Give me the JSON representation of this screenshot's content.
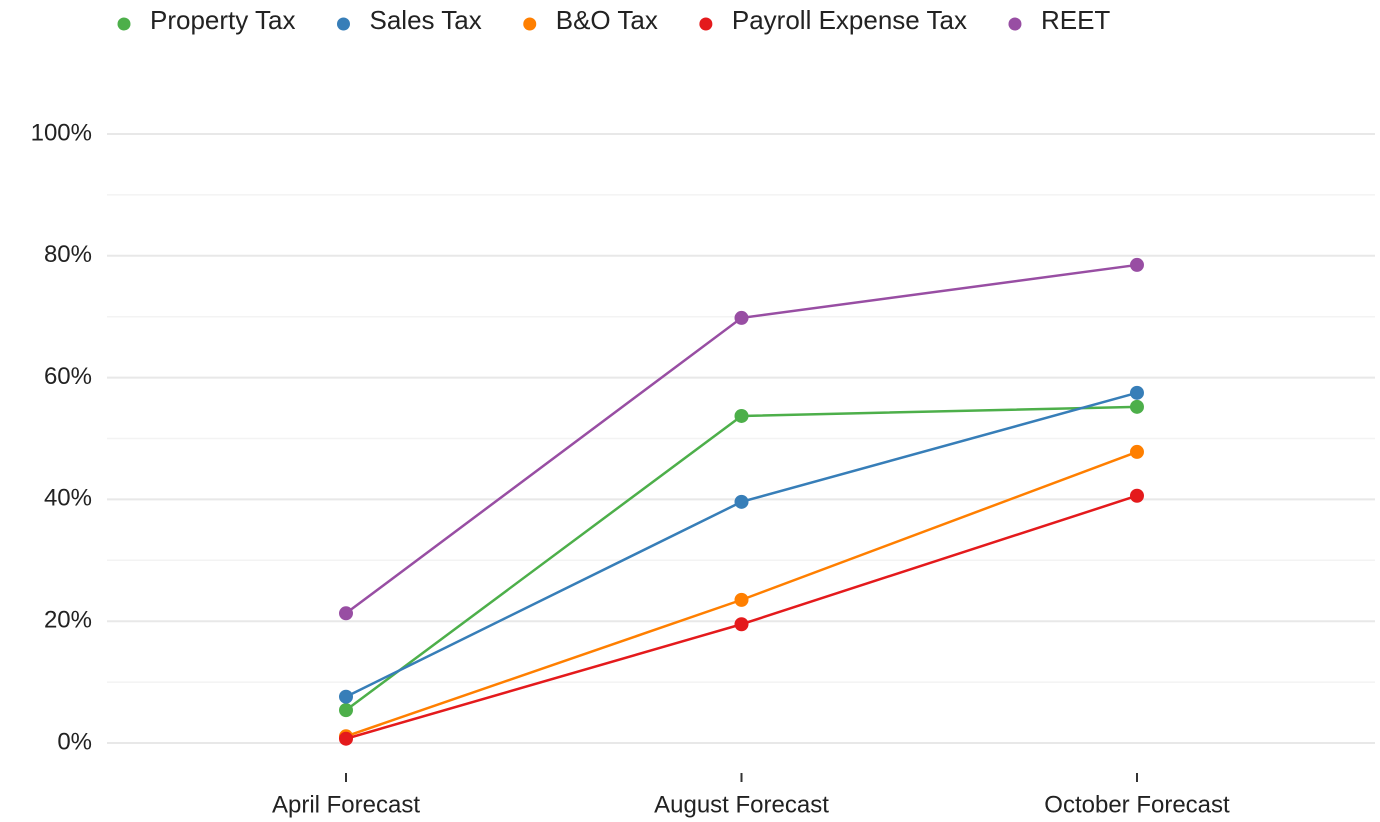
{
  "chart_data": {
    "type": "line",
    "categories": [
      "April Forecast",
      "August Forecast",
      "October Forecast"
    ],
    "series": [
      {
        "name": "Property Tax",
        "color": "#4daf4a",
        "values": [
          5.4,
          53.7,
          55.2
        ]
      },
      {
        "name": "Sales Tax",
        "color": "#377eb8",
        "values": [
          7.6,
          39.6,
          57.5
        ]
      },
      {
        "name": "B&O Tax",
        "color": "#ff7f00",
        "values": [
          1.1,
          23.5,
          47.8
        ]
      },
      {
        "name": "Payroll Expense Tax",
        "color": "#e41a1c",
        "values": [
          0.7,
          19.5,
          40.6
        ]
      },
      {
        "name": "REET",
        "color": "#984ea3",
        "values": [
          21.3,
          69.8,
          78.5
        ]
      }
    ],
    "ylim": [
      0,
      100
    ],
    "yticks": [
      {
        "value": 0,
        "label": "0%"
      },
      {
        "value": 20,
        "label": "20%"
      },
      {
        "value": 40,
        "label": "40%"
      },
      {
        "value": 60,
        "label": "60%"
      },
      {
        "value": 80,
        "label": "80%"
      },
      {
        "value": 100,
        "label": "100%"
      }
    ],
    "yminorticks": [
      10,
      30,
      50,
      70,
      90
    ],
    "grid": true,
    "legend": "top"
  }
}
